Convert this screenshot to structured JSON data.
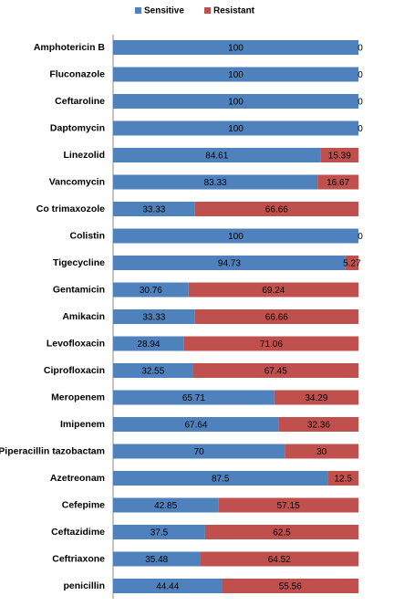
{
  "chart_data": {
    "type": "stacked-bar-horizontal",
    "categories": [
      "Amphotericin B",
      "Fluconazole",
      "Ceftaroline",
      "Daptomycin",
      "Linezolid",
      "Vancomycin",
      "Co trimaxozole",
      "Colistin",
      "Tigecycline",
      "Gentamicin",
      "Amikacin",
      "Levofloxacin",
      "Ciprofloxacin",
      "Meropenem",
      "Imipenem",
      "Piperacillin tazobactam",
      "Azetreonam",
      "Cefepime",
      "Ceftazidime",
      "Ceftriaxone",
      "penicillin"
    ],
    "series": [
      {
        "name": "Sensitive",
        "color": "#4f81bd",
        "values": [
          100,
          100,
          100,
          100,
          84.61,
          83.33,
          33.33,
          100,
          94.73,
          30.76,
          33.33,
          28.94,
          32.55,
          65.71,
          67.64,
          70,
          87.5,
          42.85,
          37.5,
          35.48,
          44.44
        ]
      },
      {
        "name": "Resistant",
        "color": "#c0504d",
        "values": [
          0,
          0,
          0,
          0,
          15.39,
          16.67,
          66.66,
          0,
          5.27,
          69.24,
          66.66,
          71.06,
          67.45,
          34.29,
          32.36,
          30,
          12.5,
          57.15,
          62.5,
          64.52,
          55.56
        ]
      }
    ],
    "xlim": [
      0,
      100
    ]
  }
}
